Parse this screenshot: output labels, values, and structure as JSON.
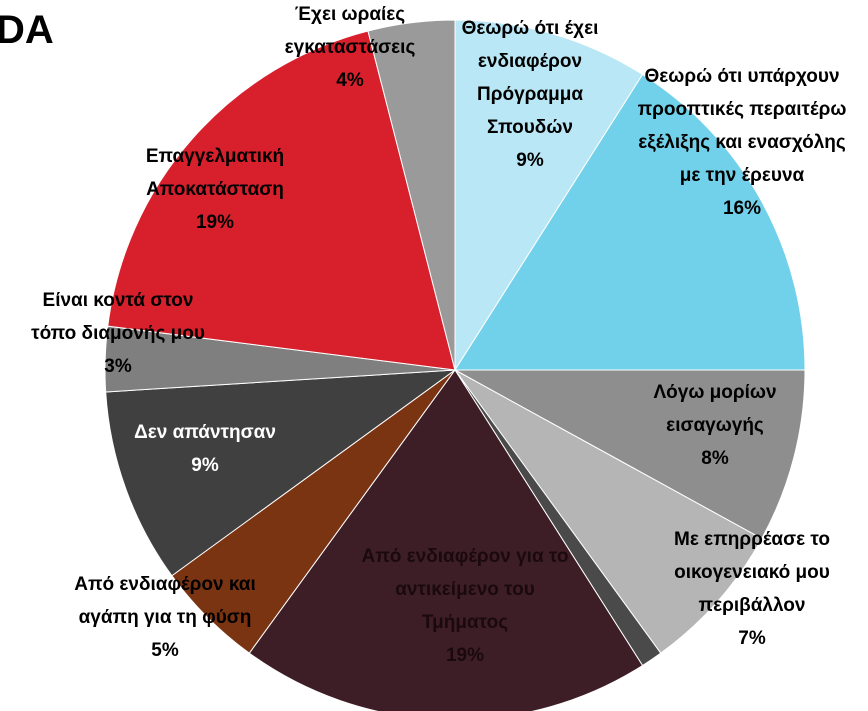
{
  "chart_data": {
    "type": "pie",
    "title": "DA",
    "categories": [
      "Θεωρώ ότι έχει ενδιαφέρον Πρόγραμμα Σπουδών",
      "Θεωρώ ότι υπάρχουν προοπτικές περαιτέρω εξέλιξης και ενασχόλης με την έρευνα",
      "Λόγω μορίων εισαγωγής",
      "Με επηρρέασε το οικογενειακό μου περιβάλλον",
      null,
      "Από ενδιαφέρον για το αντικείμενο του Τμήματος",
      "Από ενδιαφέρον και αγάπη για τη φύση",
      "Δεν απάντησαν",
      "Είναι κοντά στον τόπο διαμονής μου",
      "Επαγγελματική Αποκατάσταση",
      "Έχει ωραίες εγκαταστάσεις"
    ],
    "values": [
      9,
      16,
      8,
      7,
      1,
      19,
      5,
      9,
      3,
      19,
      4
    ],
    "value_labels": [
      "9%",
      "16%",
      "8%",
      "7%",
      null,
      "19%",
      "5%",
      "9%",
      "3%",
      "19%",
      "4%"
    ],
    "colors": [
      "#b9e7f5",
      "#72d1ea",
      "#8e8e8e",
      "#b5b5b5",
      "#4a4a4a",
      "#3e1e26",
      "#7b3412",
      "#404040",
      "#7f7f7f",
      "#d8202c",
      "#9a9a9a"
    ]
  }
}
